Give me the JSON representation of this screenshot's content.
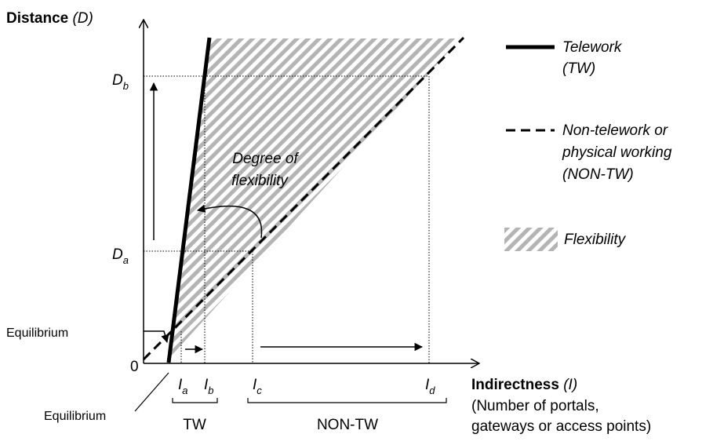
{
  "y_axis": {
    "title": "Distance",
    "symbol": "(D)"
  },
  "x_axis": {
    "title": "Indirectness",
    "symbol": "(I)",
    "subtitle_lines": [
      "(Number of portals,",
      "gateways or access points)"
    ]
  },
  "origin_label": "0",
  "y_ticks": {
    "db": {
      "base": "D",
      "sub": "b"
    },
    "da": {
      "base": "D",
      "sub": "a"
    },
    "equilibrium": "Equilibrium"
  },
  "x_ticks": {
    "ia": {
      "base": "I",
      "sub": "a"
    },
    "ib": {
      "base": "I",
      "sub": "b"
    },
    "ic": {
      "base": "I",
      "sub": "c"
    },
    "id": {
      "base": "I",
      "sub": "d"
    },
    "equilibrium": "Equilibrium"
  },
  "brackets": {
    "tw": "TW",
    "non_tw": "NON-TW"
  },
  "annotation": {
    "line1": "Degree of",
    "line2": "flexibility"
  },
  "legend": {
    "telework": {
      "line1": "Telework",
      "line2": "(TW)"
    },
    "non_telework": {
      "line1": "Non-telework or",
      "line2": "physical working",
      "line3": "(NON-TW)"
    },
    "flexibility": "Flexibility"
  },
  "colors": {
    "ink": "#000000",
    "hatch": "#b4b4b4"
  }
}
